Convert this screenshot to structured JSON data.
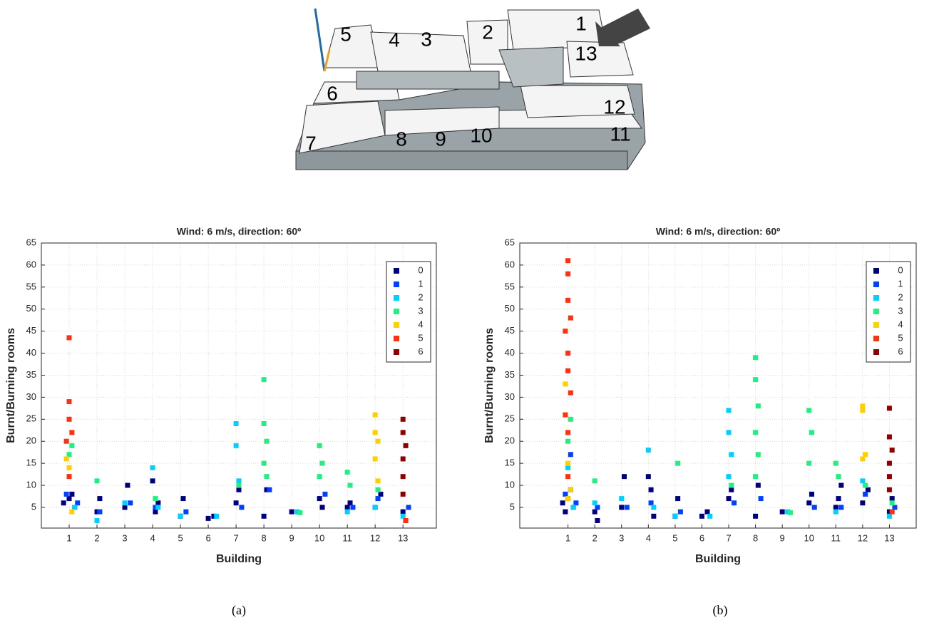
{
  "figure": {
    "building_labels": [
      "1",
      "2",
      "3",
      "4",
      "5",
      "6",
      "7",
      "8",
      "9",
      "10",
      "11",
      "12",
      "13"
    ],
    "panel_labels": [
      "(a)",
      "(b)"
    ]
  },
  "chart_data": [
    {
      "type": "scatter",
      "title": "Wind: 6 m/s, direction: 60º",
      "x_label": "Building",
      "y_label": "Burnt/Burning rooms",
      "xlim": [
        0,
        14.2
      ],
      "ylim": [
        0.3,
        65
      ],
      "xticks": [
        1,
        2,
        3,
        4,
        5,
        6,
        7,
        8,
        9,
        10,
        11,
        12,
        13
      ],
      "yticks": [
        5,
        10,
        15,
        20,
        25,
        30,
        35,
        40,
        45,
        50,
        55,
        60,
        65
      ],
      "grid": true,
      "legend": "upper right",
      "series": [
        {
          "name": "0",
          "color": "#00007f",
          "x": [
            0.8,
            1.0,
            1.2,
            1.1,
            2.0,
            2.1,
            3.0,
            3.1,
            4.0,
            4.1,
            4.2,
            5.0,
            5.1,
            6.0,
            6.2,
            7.0,
            7.1,
            8.0,
            8.1,
            9.0,
            10.0,
            10.1,
            11.0,
            11.1,
            12.0,
            12.2,
            13.0,
            13.1
          ],
          "values": [
            6,
            7,
            5,
            8,
            4,
            7,
            5,
            10,
            11,
            4,
            6,
            3,
            7,
            2.5,
            3,
            6,
            9,
            3,
            9,
            4,
            7,
            5,
            5,
            6,
            5,
            8,
            4,
            2
          ]
        },
        {
          "name": "1",
          "color": "#0040ff",
          "x": [
            0.9,
            1.3,
            2.1,
            3.2,
            4.1,
            5.2,
            7.2,
            8.2,
            10.2,
            11.2,
            12.1,
            13.2
          ],
          "values": [
            8,
            6,
            4,
            6,
            5,
            4,
            5,
            9,
            8,
            5,
            7,
            5
          ]
        },
        {
          "name": "2",
          "color": "#00d0ff",
          "x": [
            1.0,
            1.2,
            2.0,
            3.0,
            4.0,
            4.2,
            5.0,
            6.3,
            7.0,
            7.0,
            7.1,
            9.2,
            11.0,
            12.0,
            13.0
          ],
          "values": [
            12,
            5,
            2,
            6,
            14,
            5,
            3,
            3,
            24,
            19,
            11,
            4,
            4,
            5,
            3
          ]
        },
        {
          "name": "3",
          "color": "#20f080",
          "x": [
            1.1,
            1.0,
            2.0,
            4.1,
            7.1,
            8.0,
            8.0,
            8.1,
            8.0,
            8.1,
            9.3,
            10.0,
            10.1,
            10.0,
            11.0,
            11.1,
            12.1
          ],
          "values": [
            19,
            17,
            11,
            7,
            10,
            34,
            24,
            20,
            15,
            12,
            3.8,
            19,
            15,
            12,
            13,
            10,
            9
          ]
        },
        {
          "name": "4",
          "color": "#ffd000",
          "x": [
            0.9,
            1.0,
            1.1,
            12.0,
            12.0,
            12.1,
            12.0,
            12.1
          ],
          "values": [
            16,
            14,
            4,
            26,
            22,
            20,
            16,
            11
          ]
        },
        {
          "name": "5",
          "color": "#ff3010",
          "x": [
            1.0,
            1.0,
            1.0,
            1.1,
            0.9,
            1.0,
            13.1
          ],
          "values": [
            43.5,
            29,
            25,
            22,
            20,
            12,
            2
          ]
        },
        {
          "name": "6",
          "color": "#8f0000",
          "x": [
            13.0,
            13.0,
            13.1,
            13.0,
            13.0,
            13.0
          ],
          "values": [
            25,
            22,
            19,
            16,
            12,
            8
          ]
        }
      ]
    },
    {
      "type": "scatter",
      "title": "Wind: 6 m/s, direction: 60º",
      "x_label": "Building",
      "y_label": "Burnt/Burning rooms",
      "xlim": [
        -0.8,
        14
      ],
      "ylim": [
        0.3,
        65
      ],
      "xticks": [
        1,
        2,
        3,
        4,
        5,
        6,
        7,
        8,
        9,
        10,
        11,
        12,
        13
      ],
      "yticks": [
        5,
        10,
        15,
        20,
        25,
        30,
        35,
        40,
        45,
        50,
        55,
        60,
        65
      ],
      "grid": true,
      "legend": "upper right",
      "series": [
        {
          "name": "0",
          "color": "#00007f",
          "x": [
            0.8,
            1.0,
            1.2,
            1.1,
            0.9,
            2.0,
            2.1,
            3.0,
            3.1,
            4.0,
            4.1,
            4.2,
            5.0,
            5.1,
            6.0,
            6.2,
            7.0,
            7.1,
            8.0,
            8.1,
            9.0,
            10.0,
            10.1,
            11.0,
            11.1,
            11.2,
            12.0,
            12.2,
            13.0,
            13.1
          ],
          "values": [
            6,
            7,
            5,
            9,
            4,
            4,
            2,
            5,
            12,
            12,
            9,
            3,
            3,
            7,
            3,
            4,
            7,
            9,
            3,
            10,
            4,
            6,
            8,
            5,
            7,
            10,
            6,
            9,
            4,
            7
          ]
        },
        {
          "name": "1",
          "color": "#0040ff",
          "x": [
            0.9,
            1.3,
            1.1,
            2.1,
            3.2,
            4.1,
            5.2,
            7.2,
            8.2,
            10.2,
            11.2,
            12.1,
            13.2
          ],
          "values": [
            8,
            6,
            17,
            5,
            5,
            6,
            4,
            6,
            7,
            5,
            5,
            8,
            5
          ]
        },
        {
          "name": "2",
          "color": "#00d0ff",
          "x": [
            1.0,
            1.2,
            2.0,
            3.0,
            4.0,
            4.2,
            5.0,
            6.3,
            7.0,
            7.0,
            7.1,
            7.0,
            9.2,
            11.0,
            12.0,
            13.0
          ],
          "values": [
            14,
            5,
            6,
            7,
            18,
            5,
            3,
            3,
            27,
            22,
            17,
            12,
            4,
            4,
            11,
            3
          ]
        },
        {
          "name": "3",
          "color": "#20f080",
          "x": [
            1.1,
            1.0,
            2.0,
            5.1,
            7.1,
            8.0,
            8.0,
            8.1,
            8.0,
            8.1,
            8.0,
            9.3,
            10.0,
            10.1,
            10.0,
            11.0,
            11.1,
            12.1,
            13.1
          ],
          "values": [
            25,
            20,
            11,
            15,
            10,
            39,
            34,
            28,
            22,
            17,
            12,
            3.8,
            27,
            22,
            15,
            15,
            12,
            10,
            6
          ]
        },
        {
          "name": "4",
          "color": "#ffd000",
          "x": [
            0.9,
            1.0,
            1.1,
            1.0,
            12.0,
            12.0,
            12.1,
            12.0
          ],
          "values": [
            33,
            15,
            9,
            7,
            28,
            27,
            17,
            16
          ]
        },
        {
          "name": "5",
          "color": "#ff3010",
          "x": [
            1.0,
            1.0,
            1.0,
            1.1,
            0.9,
            1.0,
            1.0,
            1.1,
            0.9,
            1.0,
            1.0,
            13.1
          ],
          "values": [
            61,
            58,
            52,
            48,
            45,
            40,
            36,
            31,
            26,
            22,
            12,
            4
          ]
        },
        {
          "name": "6",
          "color": "#8f0000",
          "x": [
            13.0,
            13.0,
            13.1,
            13.0,
            13.0,
            13.0
          ],
          "values": [
            27.5,
            21,
            18,
            15,
            12,
            9
          ]
        }
      ]
    }
  ]
}
